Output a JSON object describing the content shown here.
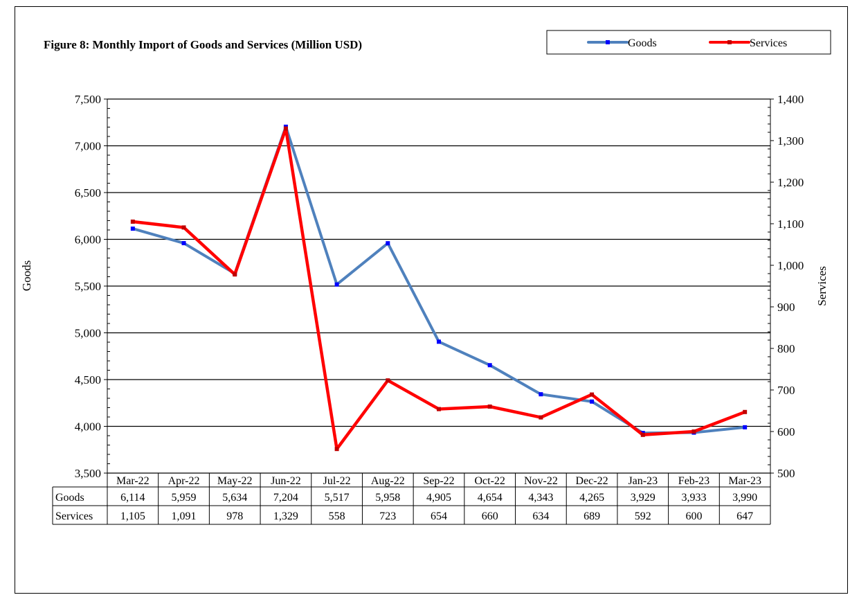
{
  "chart_data": {
    "type": "line",
    "title": "Figure 8: Monthly Import of Goods and Services (Million USD)",
    "categories": [
      "Mar-22",
      "Apr-22",
      "May-22",
      "Jun-22",
      "Jul-22",
      "Aug-22",
      "Sep-22",
      "Oct-22",
      "Nov-22",
      "Dec-22",
      "Jan-23",
      "Feb-23",
      "Mar-23"
    ],
    "series": [
      {
        "name": "Goods",
        "axis": "left",
        "color": "#4f81bd",
        "values": [
          6114,
          5959,
          5634,
          7204,
          5517,
          5958,
          4905,
          4654,
          4343,
          4265,
          3929,
          3933,
          3990
        ],
        "labels": [
          "6,114",
          "5,959",
          "5,634",
          "7,204",
          "5,517",
          "5,958",
          "4,905",
          "4,654",
          "4,343",
          "4,265",
          "3,929",
          "3,933",
          "3,990"
        ]
      },
      {
        "name": "Services",
        "axis": "right",
        "color": "#ff0000",
        "values": [
          1105,
          1091,
          978,
          1329,
          558,
          723,
          654,
          660,
          634,
          689,
          592,
          600,
          647
        ],
        "labels": [
          "1,105",
          "1,091",
          "978",
          "1,329",
          "558",
          "723",
          "654",
          "660",
          "634",
          "689",
          "592",
          "600",
          "647"
        ]
      }
    ],
    "y_left": {
      "label": "Goods",
      "ylim": [
        3500,
        7500
      ],
      "ticks": [
        3500,
        4000,
        4500,
        5000,
        5500,
        6000,
        6500,
        7000,
        7500
      ],
      "tick_labels": [
        "3,500",
        "4,000",
        "4,500",
        "5,000",
        "5,500",
        "6,000",
        "6,500",
        "7,000",
        "7,500"
      ]
    },
    "y_right": {
      "label": "Services",
      "ylim": [
        500,
        1400
      ],
      "ticks": [
        500,
        600,
        700,
        800,
        900,
        1000,
        1100,
        1200,
        1300,
        1400
      ],
      "tick_labels": [
        "500",
        "600",
        "700",
        "800",
        "900",
        "1,000",
        "1,100",
        "1,200",
        "1,300",
        "1,400"
      ]
    },
    "grid": true,
    "legend_placement": "top-right",
    "data_table": true
  }
}
